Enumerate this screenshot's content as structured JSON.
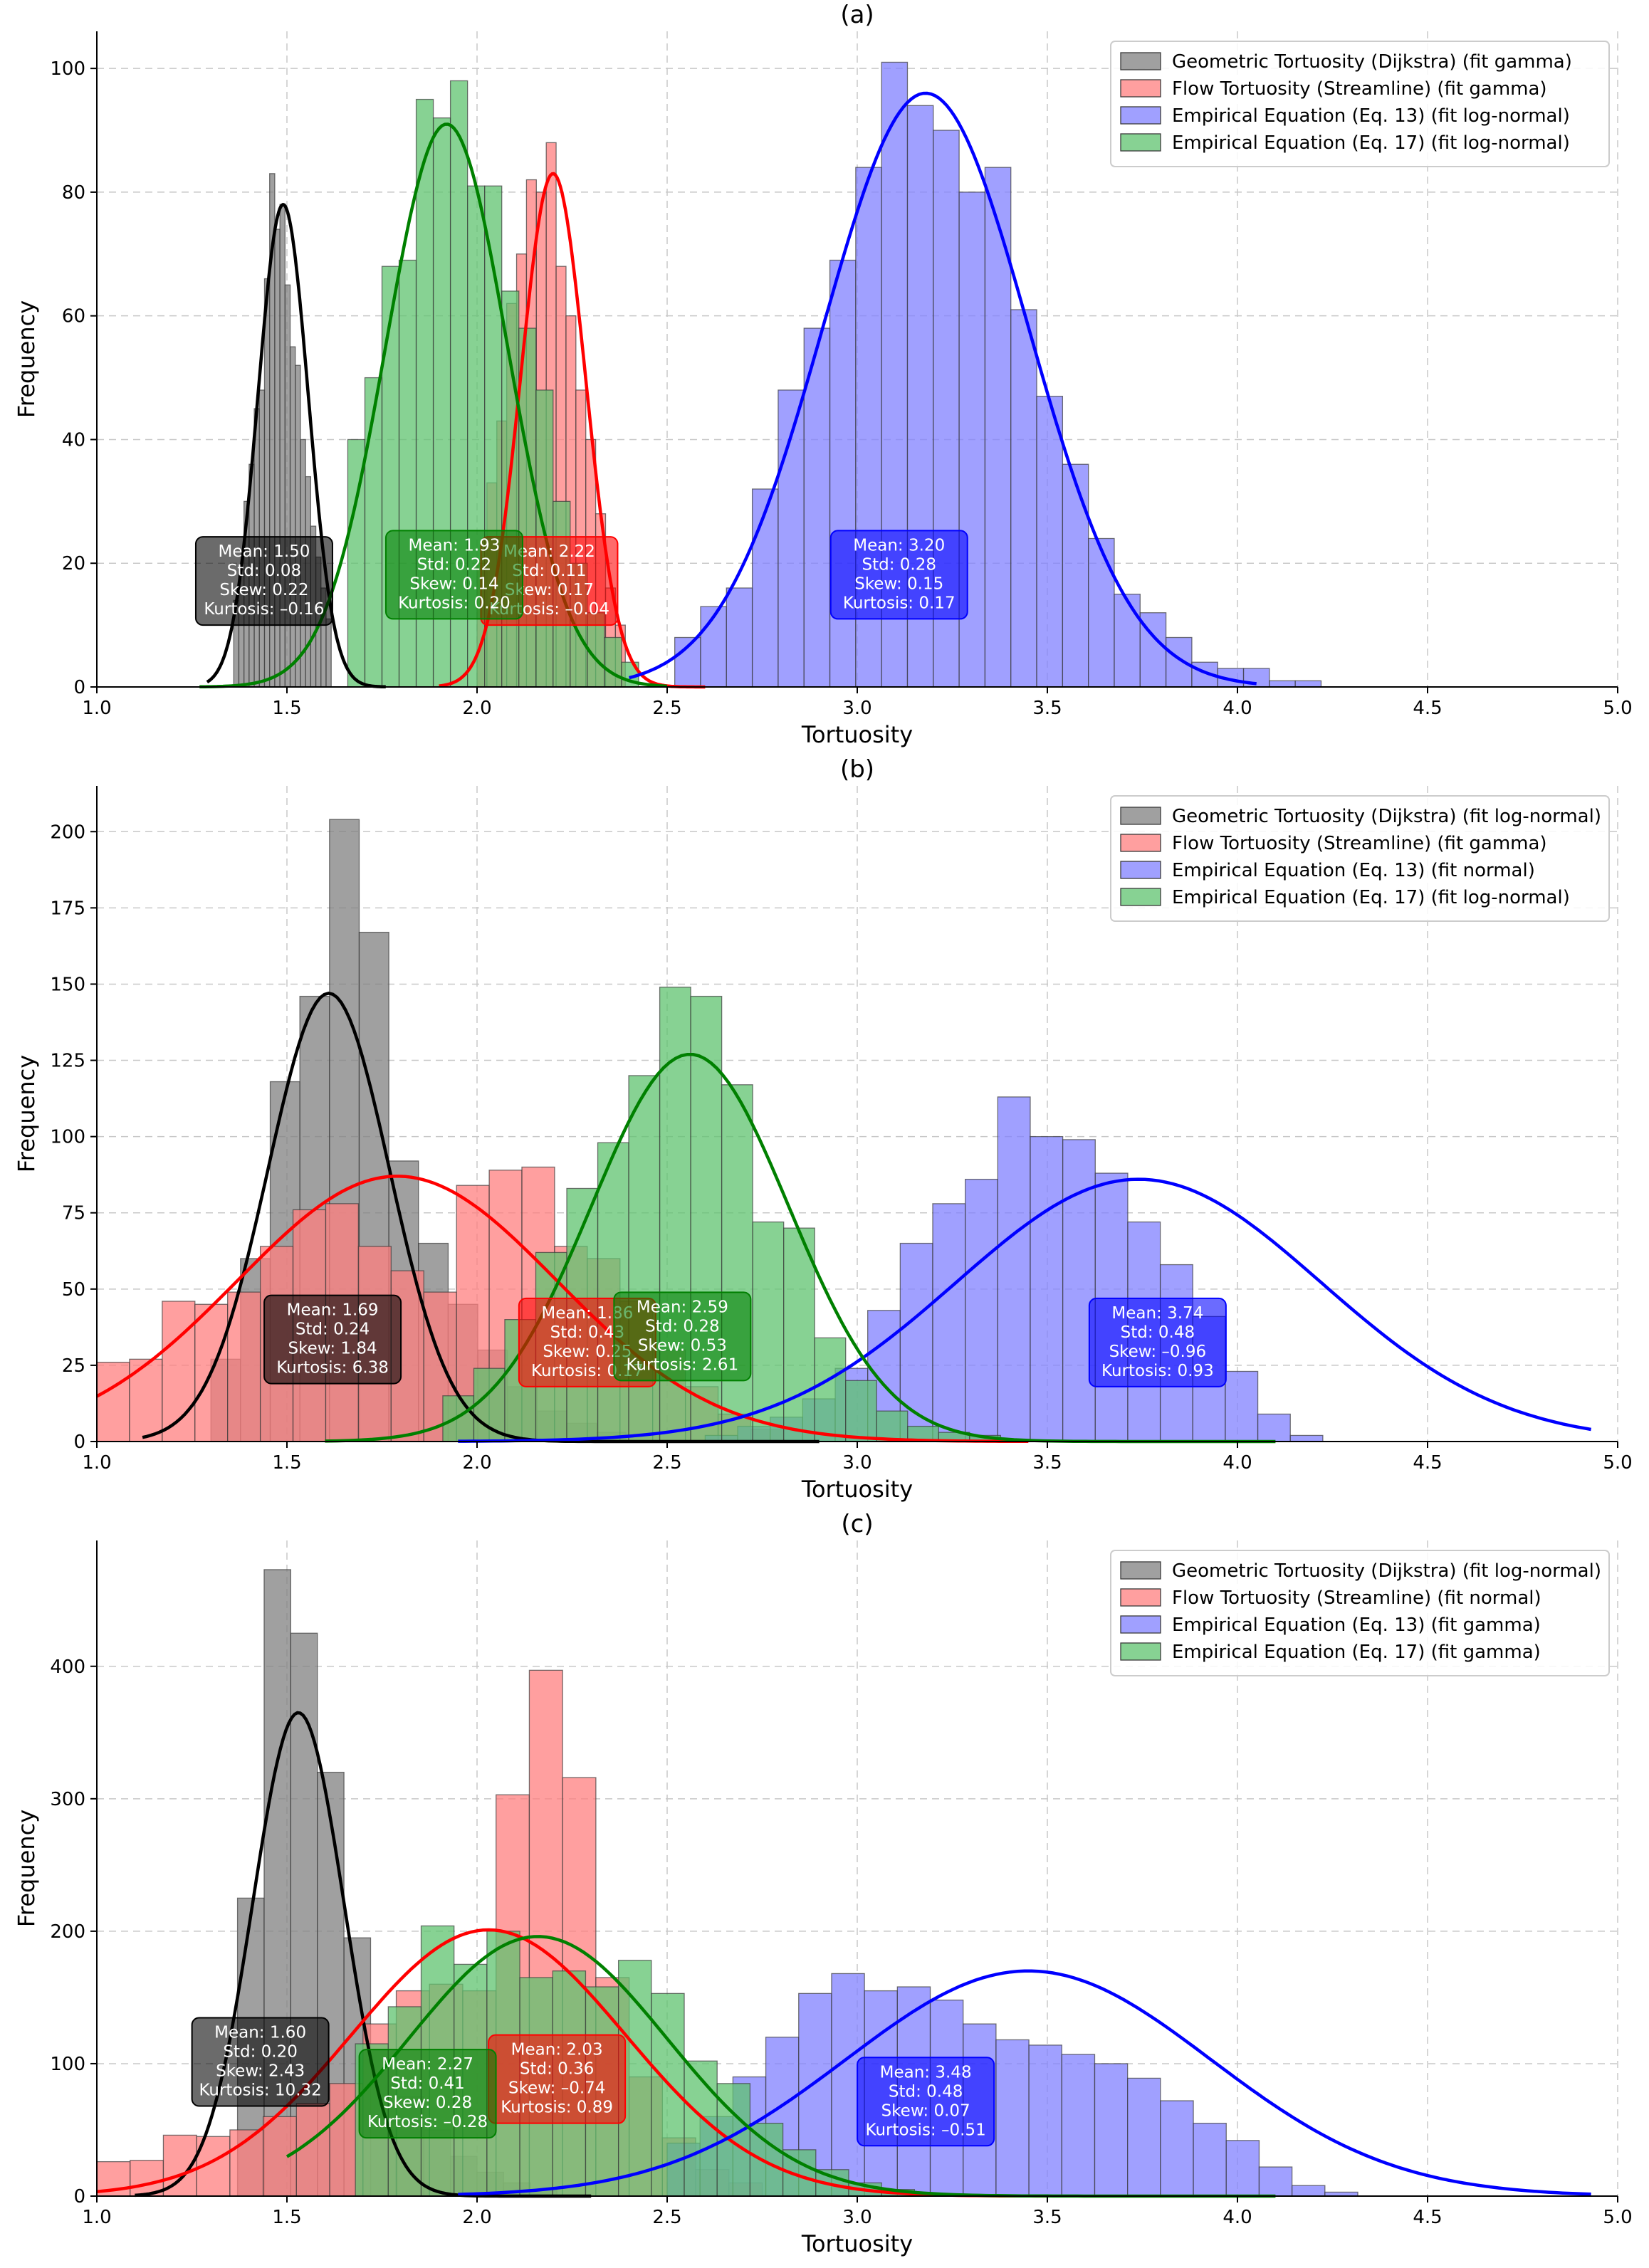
{
  "chart_data": [
    {
      "type": "bar",
      "panel": "(a)",
      "title": "(a)",
      "xlabel": "Tortuosity",
      "ylabel": "Frequency",
      "xlim": [
        1.0,
        5.0
      ],
      "ylim": [
        0,
        106
      ],
      "xticks": [
        "1.0",
        "1.5",
        "2.0",
        "2.5",
        "3.0",
        "3.5",
        "4.0",
        "4.5",
        "5.0"
      ],
      "xtick_values": [
        1.0,
        1.5,
        2.0,
        2.5,
        3.0,
        3.5,
        4.0,
        4.5,
        5.0
      ],
      "yticks": [
        "0",
        "20",
        "40",
        "60",
        "80",
        "100"
      ],
      "ytick_values": [
        0,
        20,
        40,
        60,
        80,
        100
      ],
      "grid": true,
      "legend_position": "top-right",
      "series": [
        {
          "name": "Geometric Tortuosity (Dijkstra) (fit gamma)",
          "color": "#808080",
          "line_color": "#000000",
          "bin_start": 1.36,
          "bin_width": 0.0135,
          "counts": [
            14,
            19,
            30,
            36,
            45,
            48,
            66,
            83,
            74,
            78,
            65,
            55,
            52,
            40,
            34,
            26,
            21,
            16,
            11
          ],
          "fit": {
            "mean": 1.49,
            "sd": 0.066,
            "peak": 78,
            "from": 1.29,
            "to": 1.76
          },
          "stats": {
            "mean": "Mean: 1.50",
            "std": "Std: 0.08",
            "skew": "Skew: 0.22",
            "kurtosis": "Kurtosis: –0.16"
          },
          "stat_box": {
            "x": 1.44,
            "y": 10
          }
        },
        {
          "name": "Flow Tortuosity (Streamline) (fit gamma)",
          "color": "#ff7f7f",
          "line_color": "#ff0000",
          "bin_start": 2.0,
          "bin_width": 0.026,
          "counts": [
            20,
            33,
            43,
            62,
            70,
            82,
            80,
            88,
            68,
            60,
            48,
            40,
            28,
            16,
            10
          ],
          "fit": {
            "mean": 2.2,
            "sd": 0.085,
            "peak": 83,
            "from": 1.9,
            "to": 2.6
          },
          "stats": {
            "mean": "Mean: 2.22",
            "std": "Std: 0.11",
            "skew": "Skew: 0.17",
            "kurtosis": "Kurtosis: –0.04"
          },
          "stat_box": {
            "x": 2.19,
            "y": 10
          }
        },
        {
          "name": "Empirical Equation (Eq. 13) (fit log-normal)",
          "color": "#8080ff",
          "line_color": "#0000ff",
          "bin_start": 2.52,
          "bin_width": 0.068,
          "counts": [
            8,
            13,
            16,
            32,
            48,
            58,
            69,
            84,
            101,
            94,
            90,
            80,
            84,
            61,
            47,
            36,
            24,
            15,
            12,
            8,
            4,
            3,
            3,
            1,
            1
          ],
          "fit": {
            "mean": 3.18,
            "sd": 0.27,
            "peak": 96,
            "from": 2.4,
            "to": 4.05
          },
          "stats": {
            "mean": "Mean: 3.20",
            "std": "Std: 0.28",
            "skew": "Skew: 0.15",
            "kurtosis": "Kurtosis: 0.17"
          },
          "stat_box": {
            "x": 3.11,
            "y": 11
          }
        },
        {
          "name": "Empirical Equation (Eq. 17) (fit log-normal)",
          "color": "#5fc36f",
          "line_color": "#008000",
          "bin_start": 1.66,
          "bin_width": 0.045,
          "counts": [
            40,
            50,
            68,
            69,
            95,
            92,
            98,
            81,
            81,
            64,
            58,
            48,
            30,
            20,
            12,
            8,
            4
          ],
          "fit": {
            "mean": 1.92,
            "sd": 0.16,
            "peak": 91,
            "from": 1.27,
            "to": 2.5
          },
          "stats": {
            "mean": "Mean: 1.93",
            "std": "Std: 0.22",
            "skew": "Skew: 0.14",
            "kurtosis": "Kurtosis: 0.20"
          },
          "stat_box": {
            "x": 1.94,
            "y": 11
          }
        }
      ]
    },
    {
      "type": "bar",
      "panel": "(b)",
      "title": "(b)",
      "xlabel": "Tortuosity",
      "ylabel": "Frequency",
      "xlim": [
        1.0,
        5.0
      ],
      "ylim": [
        0,
        215
      ],
      "xticks": [
        "1.0",
        "1.5",
        "2.0",
        "2.5",
        "3.0",
        "3.5",
        "4.0",
        "4.5",
        "5.0"
      ],
      "xtick_values": [
        1.0,
        1.5,
        2.0,
        2.5,
        3.0,
        3.5,
        4.0,
        4.5,
        5.0
      ],
      "yticks": [
        "0",
        "25",
        "50",
        "75",
        "100",
        "125",
        "150",
        "175",
        "200"
      ],
      "ytick_values": [
        0,
        25,
        50,
        75,
        100,
        125,
        150,
        175,
        200
      ],
      "grid": true,
      "legend_position": "top-right",
      "series": [
        {
          "name": "Geometric Tortuosity (Dijkstra) (fit log-normal)",
          "color": "#808080",
          "line_color": "#000000",
          "bin_start": 1.3,
          "bin_width": 0.078,
          "counts": [
            27,
            60,
            118,
            146,
            204,
            167,
            92,
            65,
            45,
            30,
            18,
            10,
            6,
            3
          ],
          "fit": {
            "mean": 1.61,
            "sd": 0.16,
            "peak": 147,
            "from": 1.12,
            "to": 2.9
          },
          "stats": {
            "mean": "Mean: 1.69",
            "std": "Std: 0.24",
            "skew": "Skew: 1.84",
            "kurtosis": "Kurtosis: 6.38"
          },
          "stat_box": {
            "x": 1.62,
            "y": 19
          }
        },
        {
          "name": "Flow Tortuosity (Streamline) (fit gamma)",
          "color": "#ff7f7f",
          "line_color": "#ff0000",
          "bin_start": 1.0,
          "bin_width": 0.086,
          "counts": [
            26,
            27,
            46,
            45,
            49,
            64,
            76,
            78,
            64,
            56,
            49,
            84,
            89,
            90,
            64,
            60,
            46,
            30,
            18,
            9,
            4
          ],
          "fit": {
            "mean": 1.79,
            "sd": 0.42,
            "peak": 87,
            "from": 1.0,
            "to": 3.45
          },
          "stats": {
            "mean": "Mean: 1.86",
            "std": "Std: 0.43",
            "skew": "Skew: 0.25",
            "kurtosis": "Kurtosis: 0.17"
          },
          "stat_box": {
            "x": 2.29,
            "y": 18
          }
        },
        {
          "name": "Empirical Equation (Eq. 13) (fit normal)",
          "color": "#8080ff",
          "line_color": "#0000ff",
          "bin_start": 2.6,
          "bin_width": 0.0855,
          "counts": [
            2,
            5,
            8,
            14,
            24,
            43,
            65,
            78,
            86,
            113,
            100,
            99,
            88,
            72,
            58,
            41,
            23,
            9,
            2
          ],
          "fit": {
            "mean": 3.74,
            "sd": 0.48,
            "peak": 86,
            "from": 1.95,
            "to": 4.93
          },
          "stats": {
            "mean": "Mean: 3.74",
            "std": "Std: 0.48",
            "skew": "Skew: –0.96",
            "kurtosis": "Kurtosis: 0.93"
          },
          "stat_box": {
            "x": 3.79,
            "y": 18
          }
        },
        {
          "name": "Empirical Equation (Eq. 17) (fit log-normal)",
          "color": "#5fc36f",
          "line_color": "#008000",
          "bin_start": 1.91,
          "bin_width": 0.0815,
          "counts": [
            15,
            24,
            40,
            62,
            83,
            98,
            120,
            149,
            146,
            117,
            72,
            70,
            34,
            20,
            10,
            5,
            3,
            2
          ],
          "fit": {
            "mean": 2.56,
            "sd": 0.26,
            "peak": 127,
            "from": 1.6,
            "to": 4.1
          },
          "stats": {
            "mean": "Mean: 2.59",
            "std": "Std: 0.28",
            "skew": "Skew: 0.53",
            "kurtosis": "Kurtosis: 2.61"
          },
          "stat_box": {
            "x": 2.54,
            "y": 20
          }
        }
      ]
    },
    {
      "type": "bar",
      "panel": "(c)",
      "title": "(c)",
      "xlabel": "Tortuosity",
      "ylabel": "Frequency",
      "xlim": [
        1.0,
        5.0
      ],
      "ylim": [
        0,
        495
      ],
      "xticks": [
        "1.0",
        "1.5",
        "2.0",
        "2.5",
        "3.0",
        "3.5",
        "4.0",
        "4.5",
        "5.0"
      ],
      "xtick_values": [
        1.0,
        1.5,
        2.0,
        2.5,
        3.0,
        3.5,
        4.0,
        4.5,
        5.0
      ],
      "yticks": [
        "0",
        "100",
        "200",
        "300",
        "400"
      ],
      "ytick_values": [
        0,
        100,
        200,
        300,
        400
      ],
      "grid": true,
      "legend_position": "top-right",
      "series": [
        {
          "name": "Geometric Tortuosity (Dijkstra) (fit log-normal)",
          "color": "#808080",
          "line_color": "#000000",
          "bin_start": 1.37,
          "bin_width": 0.07,
          "counts": [
            225,
            473,
            425,
            320,
            195,
            110,
            75,
            50,
            30,
            18,
            10,
            5
          ],
          "fit": {
            "mean": 1.53,
            "sd": 0.12,
            "peak": 365,
            "from": 1.1,
            "to": 2.3
          },
          "stats": {
            "mean": "Mean: 1.60",
            "std": "Std: 0.20",
            "skew": "Skew: 2.43",
            "kurtosis": "Kurtosis: 10.32"
          },
          "stat_box": {
            "x": 1.43,
            "y": 68
          }
        },
        {
          "name": "Flow Tortuosity (Streamline) (fit normal)",
          "color": "#ff7f7f",
          "line_color": "#ff0000",
          "bin_start": 1.0,
          "bin_width": 0.0875,
          "counts": [
            26,
            27,
            46,
            45,
            50,
            60,
            70,
            85,
            130,
            155,
            160,
            155,
            303,
            397,
            316,
            165,
            90,
            44,
            20,
            10
          ],
          "fit": {
            "mean": 2.03,
            "sd": 0.36,
            "peak": 201,
            "from": 1.0,
            "to": 3.5
          },
          "stats": {
            "mean": "Mean: 2.03",
            "std": "Std: 0.36",
            "skew": "Skew: –0.74",
            "kurtosis": "Kurtosis: 0.89"
          },
          "stat_box": {
            "x": 2.21,
            "y": 55
          }
        },
        {
          "name": "Empirical Equation (Eq. 13) (fit gamma)",
          "color": "#8080ff",
          "line_color": "#0000ff",
          "bin_start": 2.5,
          "bin_width": 0.0865,
          "counts": [
            40,
            60,
            90,
            120,
            153,
            168,
            155,
            158,
            148,
            130,
            118,
            114,
            107,
            100,
            89,
            72,
            55,
            42,
            22,
            8,
            3
          ],
          "fit": {
            "mean": 3.45,
            "sd": 0.48,
            "peak": 170,
            "from": 1.95,
            "to": 4.93
          },
          "stats": {
            "mean": "Mean: 3.48",
            "std": "Std: 0.48",
            "skew": "Skew: 0.07",
            "kurtosis": "Kurtosis: –0.51"
          },
          "stat_box": {
            "x": 3.18,
            "y": 38
          }
        },
        {
          "name": "Empirical Equation (Eq. 17) (fit gamma)",
          "color": "#5fc36f",
          "line_color": "#008000",
          "bin_start": 1.68,
          "bin_width": 0.0865,
          "counts": [
            115,
            143,
            204,
            175,
            200,
            165,
            170,
            158,
            178,
            153,
            102,
            85,
            55,
            35,
            20,
            10,
            5
          ],
          "fit": {
            "mean": 2.16,
            "sd": 0.34,
            "peak": 196,
            "from": 1.5,
            "to": 4.1
          },
          "stats": {
            "mean": "Mean: 2.27",
            "std": "Std: 0.41",
            "skew": "Skew: 0.28",
            "kurtosis": "Kurtosis: –0.28"
          },
          "stat_box": {
            "x": 1.87,
            "y": 44
          }
        }
      ]
    }
  ]
}
